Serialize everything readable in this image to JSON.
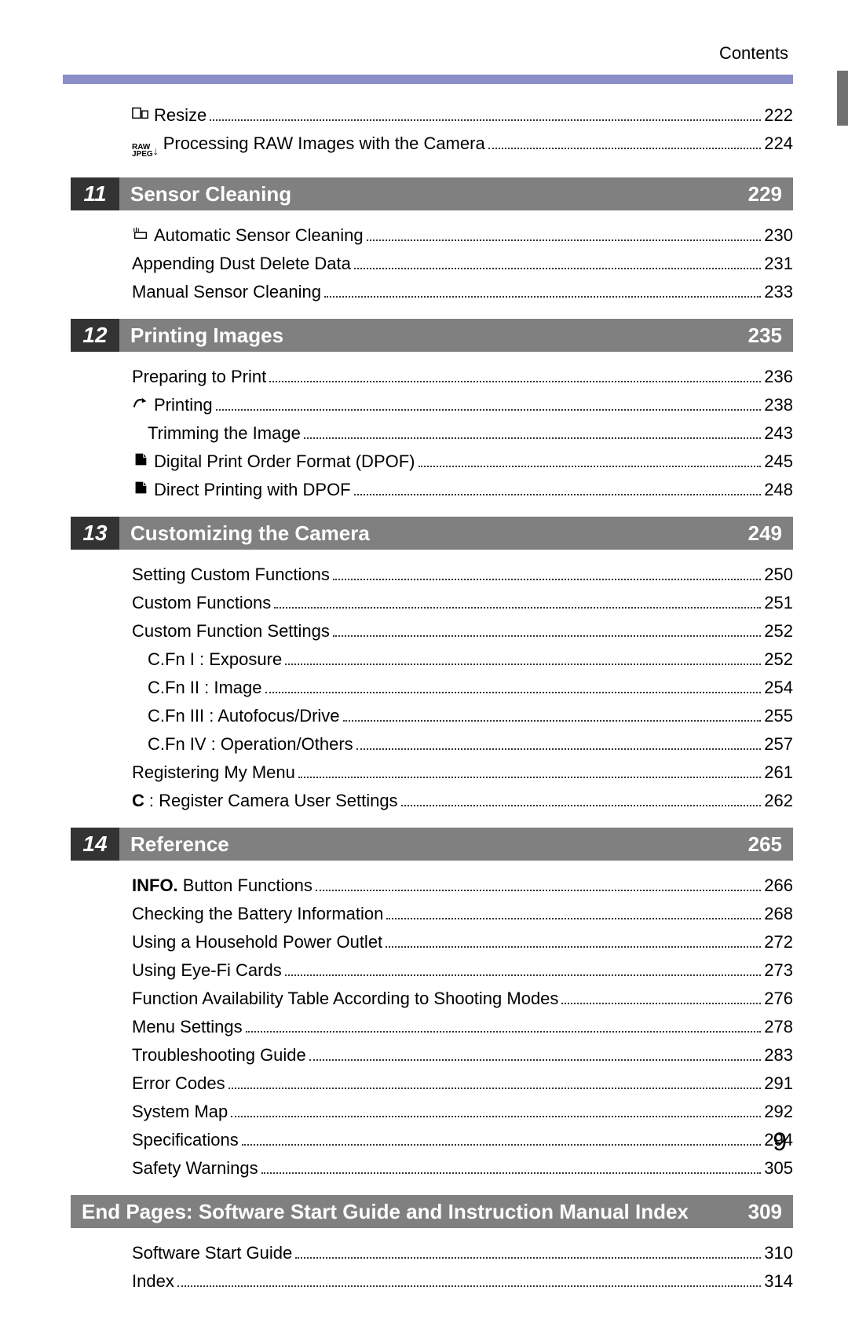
{
  "header": "Contents",
  "pre_items": [
    {
      "icon": "resize-icon",
      "label": "Resize",
      "page": "222"
    },
    {
      "icon": "rawjpeg-icon",
      "label": "Processing RAW Images with the Camera",
      "page": "224"
    }
  ],
  "sections": [
    {
      "num": "11",
      "title": "Sensor Cleaning",
      "page": "229",
      "items": [
        {
          "icon": "sensor-clean-icon",
          "label": "Automatic Sensor Cleaning",
          "page": "230"
        },
        {
          "label": "Appending Dust Delete Data",
          "page": "231"
        },
        {
          "label": "Manual Sensor Cleaning",
          "page": "233"
        }
      ]
    },
    {
      "num": "12",
      "title": "Printing Images",
      "page": "235",
      "items": [
        {
          "label": "Preparing to Print",
          "page": "236"
        },
        {
          "icon": "print-icon",
          "label": "Printing",
          "page": "238"
        },
        {
          "label": "Trimming the Image",
          "page": "243",
          "indent": 1
        },
        {
          "icon": "dpof-icon",
          "label": "Digital Print Order Format (DPOF)",
          "page": "245"
        },
        {
          "icon": "dpof-icon",
          "label": "Direct Printing with DPOF",
          "page": "248"
        }
      ]
    },
    {
      "num": "13",
      "title": "Customizing the Camera",
      "page": "249",
      "items": [
        {
          "label": "Setting Custom Functions",
          "page": "250"
        },
        {
          "label": "Custom Functions",
          "page": "251"
        },
        {
          "label": "Custom Function Settings",
          "page": "252"
        },
        {
          "label": "C.Fn I   : Exposure",
          "page": "252",
          "indent": 1
        },
        {
          "label": "C.Fn II  : Image",
          "page": "254",
          "indent": 1
        },
        {
          "label": "C.Fn III : Autofocus/Drive",
          "page": "255",
          "indent": 1
        },
        {
          "label": "C.Fn IV : Operation/Others",
          "page": "257",
          "indent": 1
        },
        {
          "label": "Registering My Menu",
          "page": "261"
        },
        {
          "icon": "c-icon",
          "label": ": Register Camera User Settings",
          "page": "262"
        }
      ]
    },
    {
      "num": "14",
      "title": "Reference",
      "page": "265",
      "items": [
        {
          "bold_prefix": "INFO.",
          "label": " Button Functions",
          "page": "266"
        },
        {
          "label": "Checking the Battery Information",
          "page": "268"
        },
        {
          "label": "Using a Household Power Outlet",
          "page": "272"
        },
        {
          "label": "Using Eye-Fi Cards",
          "page": "273"
        },
        {
          "label": "Function Availability Table According to Shooting Modes",
          "page": "276"
        },
        {
          "label": "Menu Settings",
          "page": "278"
        },
        {
          "label": "Troubleshooting Guide",
          "page": "283"
        },
        {
          "label": "Error Codes",
          "page": "291"
        },
        {
          "label": "System Map",
          "page": "292"
        },
        {
          "label": "Specifications",
          "page": "294"
        },
        {
          "label": "Safety Warnings",
          "page": "305"
        }
      ]
    },
    {
      "title": "End Pages: Software Start Guide and Instruction Manual Index",
      "page": "309",
      "no_num": true,
      "items": [
        {
          "label": "Software Start Guide",
          "page": "310"
        },
        {
          "label": "Index",
          "page": "314"
        }
      ]
    }
  ],
  "footer_page": "9",
  "colors": {
    "purple_bar": "#8b8ec8",
    "section_num_bg": "#333333",
    "section_title_bg": "#808080",
    "side_tab": "#707070"
  }
}
